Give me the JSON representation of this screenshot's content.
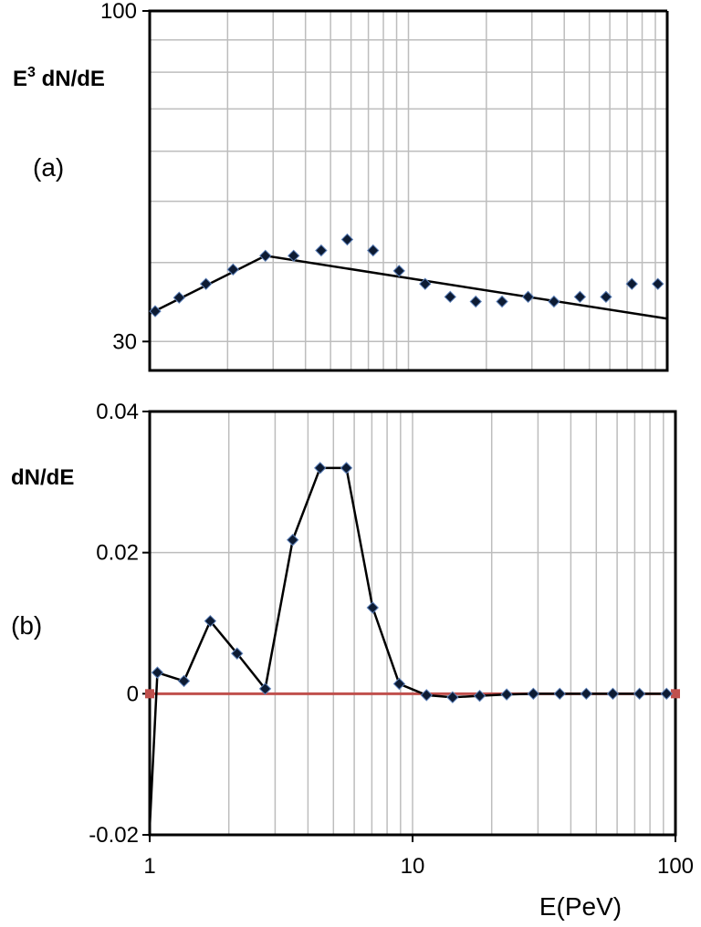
{
  "chart_data": [
    {
      "panel": "(a)",
      "type": "scatter",
      "ylabel_main": "E",
      "ylabel_sup": "3",
      "ylabel_rest": " dN/dE",
      "x_scale": "log",
      "y_scale": "log",
      "xlim": [
        1,
        100
      ],
      "ylim": [
        27,
        100
      ],
      "ytick_labels": [
        "100",
        "30"
      ],
      "ytick_values": [
        100,
        30
      ],
      "series": [
        {
          "type": "scatter",
          "marker": "diamond",
          "x": [
            1.05,
            1.3,
            1.65,
            2.1,
            2.8,
            3.6,
            4.6,
            5.8,
            7.3,
            9.2,
            11.6,
            14.5,
            18.2,
            23,
            29,
            36.5,
            46,
            58,
            73,
            92
          ],
          "y": [
            33.5,
            35.2,
            37.0,
            39.0,
            41.0,
            41.0,
            41.8,
            43.5,
            41.8,
            38.8,
            37.0,
            35.3,
            34.7,
            34.7,
            35.3,
            34.7,
            35.3,
            35.3,
            37.0,
            37.0
          ]
        },
        {
          "type": "line",
          "x": [
            1,
            2.8,
            100
          ],
          "y": [
            33.2,
            41.0,
            32.6
          ]
        }
      ]
    },
    {
      "panel": "(b)",
      "type": "line",
      "ylabel": "dN/dE",
      "xlabel": "E(PeV)",
      "x_scale": "log",
      "xlim": [
        1,
        100
      ],
      "ylim": [
        -0.02,
        0.04
      ],
      "xtick_labels": [
        "1",
        "10",
        "100"
      ],
      "xtick_values": [
        1,
        10,
        100
      ],
      "ytick_labels": [
        "0.04",
        "0.02",
        "0",
        "-0.02"
      ],
      "ytick_values": [
        0.04,
        0.02,
        0,
        -0.02
      ],
      "series": [
        {
          "type": "line",
          "marker": "diamond",
          "marker_start_index": 1,
          "color": "#000000",
          "x": [
            1.0,
            1.07,
            1.35,
            1.7,
            2.15,
            2.75,
            3.5,
            4.45,
            5.6,
            7.05,
            8.9,
            11.3,
            14.2,
            18,
            22.8,
            28.8,
            36.3,
            45.8,
            57.8,
            73,
            92.5
          ],
          "y": [
            -0.019,
            0.003,
            0.0018,
            0.0103,
            0.0057,
            0.0007,
            0.0218,
            0.032,
            0.032,
            0.0122,
            0.0014,
            -0.0002,
            -0.0005,
            -0.0003,
            -0.0001,
            0,
            0,
            0,
            0,
            0,
            0
          ]
        },
        {
          "type": "line",
          "marker": "square",
          "color": "#c0504d",
          "x": [
            1,
            100
          ],
          "y": [
            0,
            0
          ]
        }
      ]
    }
  ]
}
